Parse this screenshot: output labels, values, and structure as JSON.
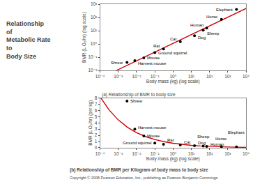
{
  "chart_data": [
    {
      "type": "scatter",
      "title": "Relationship\nof\nMetabolic Rate\nto\nBody Size",
      "subtitle": "(a) Relationship of BMR to body size",
      "xlabel": "Body mass (kg) (log scale)",
      "ylabel": "BMR (L O₂/hr) (log scale)",
      "log": true,
      "grid": false,
      "xlim": [
        0.0001,
        10000
      ],
      "ylim": [
        0.01,
        1000
      ],
      "xticks": [
        {
          "value": 0.0001,
          "label": "10⁻⁴"
        },
        {
          "value": 0.001,
          "label": "10⁻³"
        },
        {
          "value": 0.01,
          "label": "10⁻²"
        },
        {
          "value": 0.1,
          "label": "10⁻¹"
        },
        {
          "value": 1,
          "label": "10⁰"
        },
        {
          "value": 10,
          "label": "10¹"
        },
        {
          "value": 100,
          "label": "10²"
        },
        {
          "value": 1000,
          "label": "10³"
        },
        {
          "value": 10000,
          "label": "10⁴"
        }
      ],
      "yticks": [
        {
          "value": 0.01,
          "label": "10⁻²"
        },
        {
          "value": 0.1,
          "label": "10⁻¹"
        },
        {
          "value": 1,
          "label": "10⁰"
        },
        {
          "value": 10,
          "label": "10¹"
        },
        {
          "value": 100,
          "label": "10²"
        },
        {
          "value": 1000,
          "label": "10³"
        }
      ],
      "series": [
        {
          "type": "line",
          "color": "#cc0000",
          "x": [
            0.000785,
            10000
          ],
          "values": [
            0.01,
            476.7
          ]
        },
        {
          "type": "scatter",
          "color": "black",
          "marker": "circle",
          "x": [
            0.003,
            0.008,
            0.025,
            0.1,
            0.3,
            2.5,
            15.0,
            45.0,
            70.0,
            450.0,
            3000.0
          ],
          "values": [
            0.04,
            0.055,
            0.09,
            0.22,
            0.42,
            1.5,
            4.2,
            11.0,
            16.0,
            72.0,
            400.0
          ]
        }
      ],
      "annotations": [
        {
          "text": "Shrew",
          "x": 0.003,
          "y": 0.04
        },
        {
          "text": "Harvest mouse",
          "x": 0.008,
          "y": 0.055
        },
        {
          "text": "Mouse",
          "x": 0.025,
          "y": 0.09
        },
        {
          "text": "Ground squirrel",
          "x": 0.1,
          "y": 0.22
        },
        {
          "text": "Rat",
          "x": 0.3,
          "y": 0.42
        },
        {
          "text": "Cat",
          "x": 2.5,
          "y": 1.5
        },
        {
          "text": "Dog",
          "x": 15.0,
          "y": 4.2
        },
        {
          "text": "Sheep",
          "x": 45.0,
          "y": 11.0
        },
        {
          "text": "Human",
          "x": 70.0,
          "y": 16.0
        },
        {
          "text": "Horse",
          "x": 450.0,
          "y": 72.0
        },
        {
          "text": "Elephant",
          "x": 3000.0,
          "y": 400.0
        }
      ]
    },
    {
      "type": "scatter",
      "subtitle": "(b) Relationship of BMR per Kilogram of body mass to body size",
      "footnote": "Copyright © 2008 Pearson Education, Inc., publishing as Pearson Benjamin Cummings",
      "xlabel": "Body mass (kg) (log scale)",
      "ylabel": "BMR (L O₂/hr) (per kg)",
      "log": "x",
      "grid": false,
      "xlim": [
        0.0001,
        10000
      ],
      "ylim": [
        0,
        8
      ],
      "xticks": [
        {
          "value": 0.0001,
          "label": "10⁻⁴"
        },
        {
          "value": 0.001,
          "label": "10⁻³"
        },
        {
          "value": 0.01,
          "label": "10⁻²"
        },
        {
          "value": 0.1,
          "label": "10⁻¹"
        },
        {
          "value": 1,
          "label": "10⁰"
        },
        {
          "value": 10,
          "label": "10¹"
        },
        {
          "value": 100,
          "label": "10²"
        },
        {
          "value": 1000,
          "label": "10³"
        },
        {
          "value": 10000,
          "label": "10⁴"
        }
      ],
      "yticks": [
        0,
        1,
        2,
        3,
        4,
        5,
        6,
        7,
        8
      ],
      "series": [
        {
          "type": "line",
          "color": "#cc0000",
          "x": [
            0.00011109,
            0.000316228,
            0.001,
            0.00316228,
            0.01,
            0.0316228,
            0.1,
            0.316228,
            1,
            3.16228,
            10,
            31.6228,
            100,
            316.228,
            1000,
            3162.28,
            10000
          ],
          "values": [
            8,
            6.0634,
            4.4694,
            3.2944,
            2.4283,
            1.7899,
            1.3194,
            0.97252,
            0.71685,
            0.52839,
            0.38948,
            0.28709,
            0.21162,
            0.15598,
            0.11498,
            0.08475,
            0.06247
          ]
        },
        {
          "type": "scatter",
          "color": "black",
          "marker": "circle",
          "x": [
            0.003,
            0.008,
            0.025,
            0.1,
            0.3,
            2.5,
            15.0,
            45.0,
            70.0,
            450.0,
            3000.0
          ],
          "values": [
            7.5,
            3.0,
            1.9,
            0.75,
            0.55,
            0.45,
            0.33,
            0.26,
            0.22,
            0.16,
            0.13
          ]
        }
      ],
      "annotations": [
        {
          "text": "Shrew",
          "x": 0.003,
          "y": 7.5
        },
        {
          "text": "Harvest mouse",
          "x": 0.008,
          "y": 3.0
        },
        {
          "text": "Mouse",
          "x": 0.025,
          "y": 1.9
        },
        {
          "text": "Ground squirrel",
          "x": 0.1,
          "y": 0.75
        },
        {
          "text": "Rat",
          "x": 0.3,
          "y": 0.55
        },
        {
          "text": "Cat",
          "x": 2.5,
          "y": 0.45
        },
        {
          "text": "Dog",
          "x": 15.0,
          "y": 0.33
        },
        {
          "text": "Sheep",
          "x": 45.0,
          "y": 0.26
        },
        {
          "text": "Human",
          "x": 70.0,
          "y": 0.22
        },
        {
          "text": "Horse",
          "x": 450.0,
          "y": 0.16
        },
        {
          "text": "Elephant",
          "x": 3000.0,
          "y": 0.13
        }
      ]
    }
  ]
}
